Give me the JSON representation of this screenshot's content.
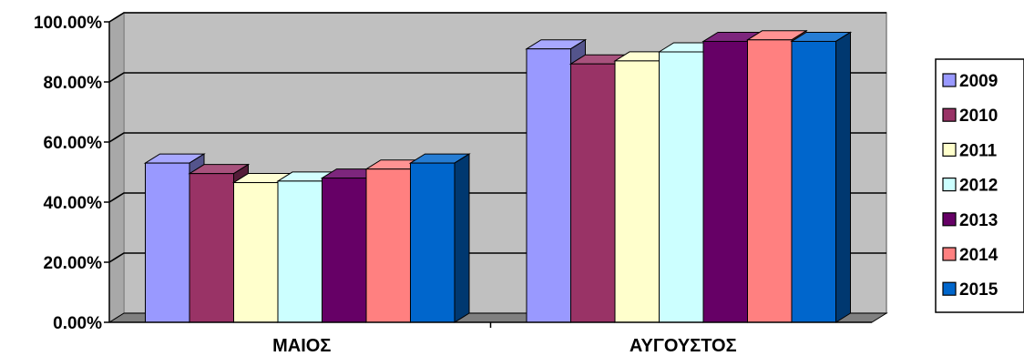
{
  "chart_data": {
    "type": "bar",
    "style": "3d-clustered-column",
    "categories": [
      "ΜΑΙΟΣ",
      "ΑΥΓΟΥΣΤΟΣ"
    ],
    "series": [
      {
        "name": "2009",
        "color": "#9999ff",
        "values": [
          53.0,
          91.0
        ]
      },
      {
        "name": "2010",
        "color": "#993366",
        "values": [
          49.5,
          86.0
        ]
      },
      {
        "name": "2011",
        "color": "#ffffcc",
        "values": [
          46.5,
          87.0
        ]
      },
      {
        "name": "2012",
        "color": "#ccffff",
        "values": [
          47.0,
          90.0
        ]
      },
      {
        "name": "2013",
        "color": "#660066",
        "values": [
          48.0,
          93.5
        ]
      },
      {
        "name": "2014",
        "color": "#ff8080",
        "values": [
          51.0,
          94.0
        ]
      },
      {
        "name": "2015",
        "color": "#0066cc",
        "values": [
          53.0,
          93.5
        ]
      }
    ],
    "yticks": [
      "0.00%",
      "20.00%",
      "40.00%",
      "60.00%",
      "80.00%",
      "100.00%"
    ],
    "ylim": [
      0,
      100
    ],
    "grid": true,
    "legend_position": "right",
    "plot_background": "#c0c0c0"
  }
}
